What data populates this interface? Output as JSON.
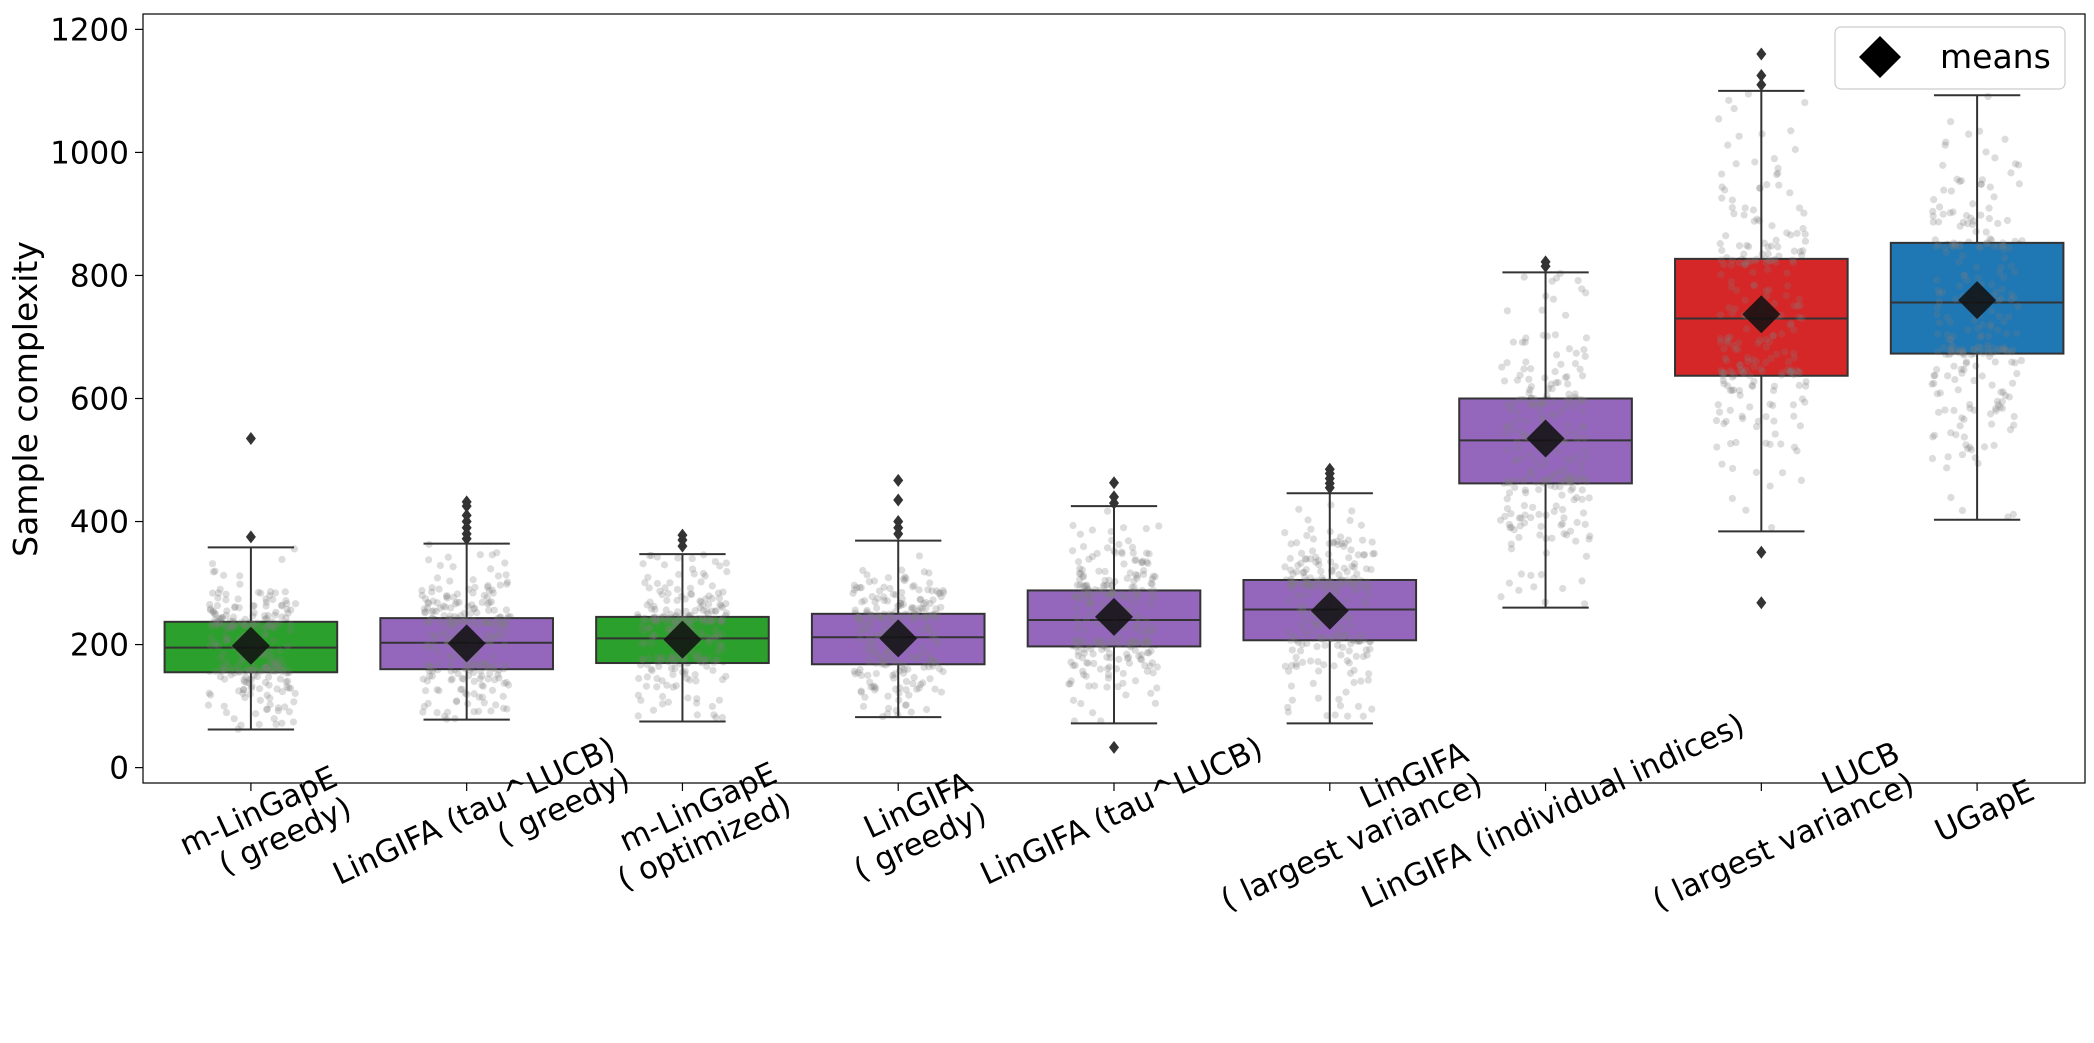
{
  "chart_data": {
    "type": "box",
    "title": "",
    "xlabel": "",
    "ylabel": "Sample complexity",
    "ylim": [
      -25,
      1225
    ],
    "yticks": [
      0,
      200,
      400,
      600,
      800,
      1000,
      1200
    ],
    "legend": {
      "position": "top-right",
      "marker": "diamond",
      "label": "means"
    },
    "categories": [
      "m-LinGapE\n( greedy)",
      "LinGIFA (tau^LUCB)\n( greedy)",
      "m-LinGapE\n( optimized)",
      "LinGIFA\n( greedy)",
      "LinGIFA (tau^LUCB)",
      "LinGIFA\n( largest variance)",
      "LinGIFA (individual indices)",
      "LUCB\n( largest variance)",
      "UGapE"
    ],
    "boxes": [
      {
        "name": "m-LinGapE\n( greedy)",
        "color": "#2ca02c",
        "q1": 155,
        "median": 195,
        "q3": 237,
        "whisker_low": 62,
        "whisker_high": 358,
        "mean": 198,
        "outliers": [
          375,
          535
        ]
      },
      {
        "name": "LinGIFA (tau^LUCB)\n( greedy)",
        "color": "#9467bd",
        "q1": 160,
        "median": 203,
        "q3": 243,
        "whisker_low": 78,
        "whisker_high": 364,
        "mean": 202,
        "outliers": [
          372,
          380,
          390,
          400,
          410,
          425,
          432
        ]
      },
      {
        "name": "m-LinGapE\n( optimized)",
        "color": "#2ca02c",
        "q1": 170,
        "median": 210,
        "q3": 245,
        "whisker_low": 75,
        "whisker_high": 347,
        "mean": 208,
        "outliers": [
          360,
          370,
          378
        ]
      },
      {
        "name": "LinGIFA\n( greedy)",
        "color": "#9467bd",
        "q1": 168,
        "median": 212,
        "q3": 250,
        "whisker_low": 82,
        "whisker_high": 369,
        "mean": 210,
        "outliers": [
          380,
          390,
          400,
          435,
          467
        ]
      },
      {
        "name": "LinGIFA (tau^LUCB)",
        "color": "#9467bd",
        "q1": 197,
        "median": 240,
        "q3": 288,
        "whisker_low": 72,
        "whisker_high": 425,
        "mean": 245,
        "outliers": [
          33,
          430,
          440,
          463
        ]
      },
      {
        "name": "LinGIFA\n( largest variance)",
        "color": "#9467bd",
        "q1": 207,
        "median": 257,
        "q3": 305,
        "whisker_low": 72,
        "whisker_high": 446,
        "mean": 255,
        "outliers": [
          455,
          462,
          470,
          478,
          485
        ]
      },
      {
        "name": "LinGIFA (individual indices)",
        "color": "#9467bd",
        "q1": 462,
        "median": 532,
        "q3": 600,
        "whisker_low": 260,
        "whisker_high": 805,
        "mean": 535,
        "outliers": [
          815,
          822
        ]
      },
      {
        "name": "LUCB\n( largest variance)",
        "color": "#d62728",
        "q1": 637,
        "median": 730,
        "q3": 827,
        "whisker_low": 384,
        "whisker_high": 1100,
        "mean": 737,
        "outliers": [
          268,
          350,
          1110,
          1125,
          1160
        ]
      },
      {
        "name": "UGapE",
        "color": "#1f77b4",
        "q1": 673,
        "median": 756,
        "q3": 853,
        "whisker_low": 403,
        "whisker_high": 1093,
        "mean": 760,
        "outliers": []
      }
    ]
  }
}
